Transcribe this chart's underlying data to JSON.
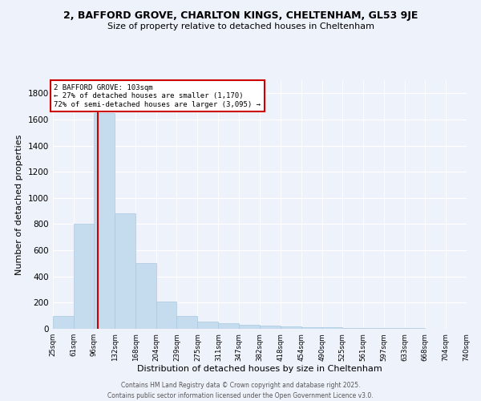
{
  "title": "2, BAFFORD GROVE, CHARLTON KINGS, CHELTENHAM, GL53 9JE",
  "subtitle": "Size of property relative to detached houses in Cheltenham",
  "xlabel": "Distribution of detached houses by size in Cheltenham",
  "ylabel": "Number of detached properties",
  "bins": [
    25,
    61,
    96,
    132,
    168,
    204,
    239,
    275,
    311,
    347,
    382,
    418,
    454,
    490,
    525,
    561,
    597,
    633,
    668,
    704,
    740
  ],
  "counts": [
    100,
    800,
    1650,
    880,
    500,
    210,
    100,
    55,
    40,
    30,
    22,
    18,
    14,
    10,
    8,
    6,
    5,
    4,
    3,
    2
  ],
  "bar_color": "#c5dcee",
  "bar_edge_color": "#aac8de",
  "property_size": 103,
  "annotation_title": "2 BAFFORD GROVE: 103sqm",
  "annotation_line1": "← 27% of detached houses are smaller (1,170)",
  "annotation_line2": "72% of semi-detached houses are larger (3,095) →",
  "vline_color": "#cc0000",
  "annotation_box_color": "#cc0000",
  "annotation_text_color": "#000000",
  "background_color": "#eef2fb",
  "footer_line1": "Contains HM Land Registry data © Crown copyright and database right 2025.",
  "footer_line2": "Contains public sector information licensed under the Open Government Licence v3.0.",
  "ylim": [
    0,
    1900
  ],
  "yticks": [
    0,
    200,
    400,
    600,
    800,
    1000,
    1200,
    1400,
    1600,
    1800
  ]
}
